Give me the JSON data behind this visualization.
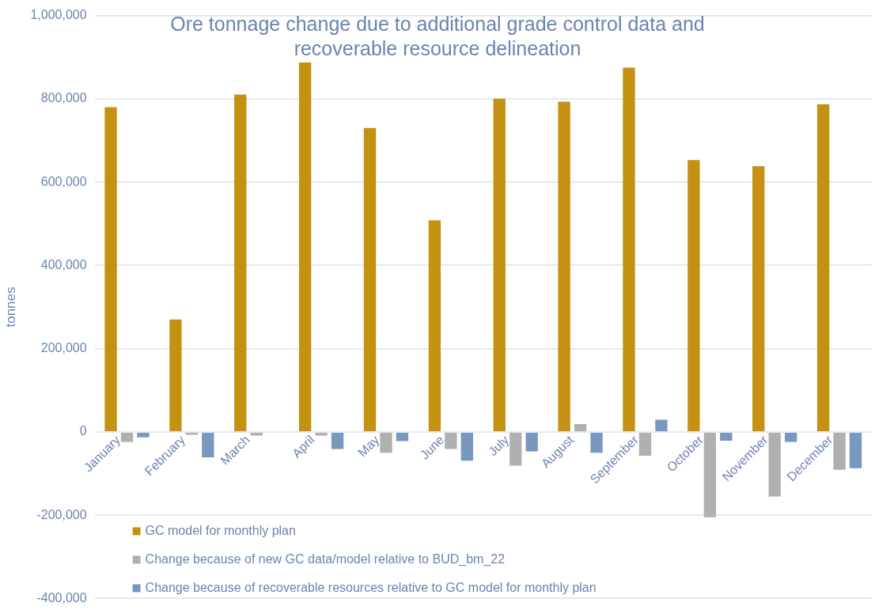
{
  "chart_data": {
    "type": "bar",
    "title": "Ore tonnage change due to additional grade control data and recoverable resource delineation",
    "ylabel": "tonnes",
    "categories": [
      "January",
      "February",
      "March",
      "April",
      "May",
      "June",
      "July",
      "August",
      "September",
      "October",
      "November",
      "December"
    ],
    "series": [
      {
        "name": "GC model for monthly plan",
        "color": "#c49112",
        "values": [
          780000,
          270000,
          810000,
          887000,
          730000,
          508000,
          800000,
          793000,
          875000,
          653000,
          638000,
          787000
        ]
      },
      {
        "name": "Change because of new GC data/model relative to BUD_bm_22",
        "color": "#b0b0b0",
        "values": [
          -24000,
          -7000,
          -9000,
          -9000,
          -50000,
          -41000,
          -81000,
          19000,
          -57000,
          -205000,
          -155000,
          -91000
        ]
      },
      {
        "name": "Change because of recoverable resources relative to GC model for monthly plan",
        "color": "#7898c0",
        "values": [
          -13000,
          -61000,
          null,
          -41000,
          -22000,
          -69000,
          -47000,
          -50000,
          29000,
          -21000,
          -24000,
          -87000
        ]
      }
    ],
    "ylim": [
      -400000,
      1000000
    ],
    "yticks": [
      {
        "value": -400000,
        "label": "-400,000"
      },
      {
        "value": -200000,
        "label": "-200,000"
      },
      0,
      {
        "value": 200000,
        "label": "200,000"
      },
      {
        "value": 400000,
        "label": "400,000"
      },
      {
        "value": 600000,
        "label": "600,000"
      },
      {
        "value": 800000,
        "label": "800,000"
      },
      {
        "value": 1000000,
        "label": "1,000,000"
      }
    ],
    "grid": "y",
    "legend": "bottom left"
  }
}
